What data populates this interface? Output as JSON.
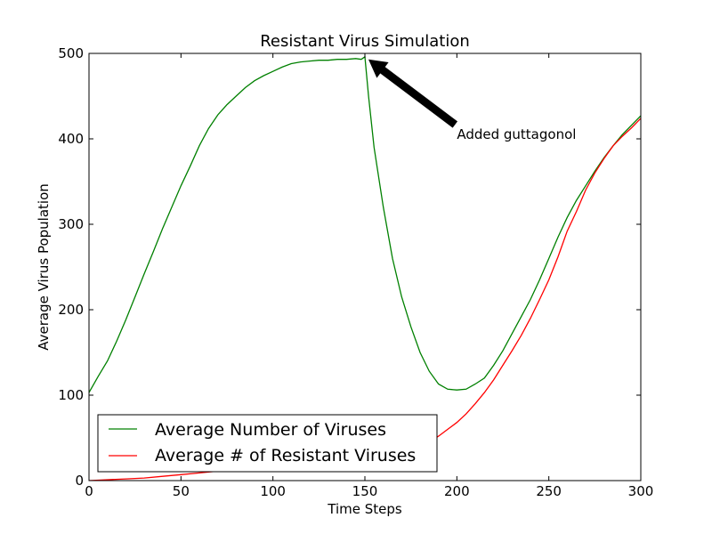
{
  "chart_data": {
    "type": "line",
    "title": "Resistant Virus Simulation",
    "xlabel": "Time Steps",
    "ylabel": "Average Virus Population",
    "xlim": [
      0,
      300
    ],
    "ylim": [
      0,
      500
    ],
    "xticks": [
      0,
      50,
      100,
      150,
      200,
      250,
      300
    ],
    "yticks": [
      0,
      100,
      200,
      300,
      400,
      500
    ],
    "grid": false,
    "legend_position": "lower-left",
    "annotation": {
      "text": "Added guttagonol",
      "xy": [
        150,
        495
      ],
      "xytext": [
        200,
        400
      ]
    },
    "series": [
      {
        "name": "Average Number of Viruses",
        "color": "#008000",
        "points": [
          [
            0,
            103
          ],
          [
            5,
            122
          ],
          [
            10,
            140
          ],
          [
            15,
            163
          ],
          [
            20,
            188
          ],
          [
            25,
            215
          ],
          [
            30,
            242
          ],
          [
            35,
            268
          ],
          [
            40,
            295
          ],
          [
            45,
            320
          ],
          [
            50,
            345
          ],
          [
            55,
            368
          ],
          [
            60,
            392
          ],
          [
            65,
            412
          ],
          [
            70,
            428
          ],
          [
            75,
            440
          ],
          [
            80,
            450
          ],
          [
            85,
            460
          ],
          [
            90,
            468
          ],
          [
            95,
            474
          ],
          [
            100,
            479
          ],
          [
            105,
            484
          ],
          [
            110,
            488
          ],
          [
            115,
            490
          ],
          [
            120,
            491
          ],
          [
            125,
            492
          ],
          [
            130,
            492
          ],
          [
            135,
            493
          ],
          [
            140,
            493
          ],
          [
            145,
            494
          ],
          [
            148,
            493
          ],
          [
            150,
            496
          ],
          [
            152,
            450
          ],
          [
            155,
            390
          ],
          [
            160,
            320
          ],
          [
            165,
            260
          ],
          [
            170,
            215
          ],
          [
            175,
            180
          ],
          [
            180,
            150
          ],
          [
            185,
            128
          ],
          [
            190,
            113
          ],
          [
            195,
            107
          ],
          [
            200,
            106
          ],
          [
            205,
            107
          ],
          [
            210,
            113
          ],
          [
            215,
            120
          ],
          [
            220,
            135
          ],
          [
            225,
            152
          ],
          [
            230,
            172
          ],
          [
            235,
            192
          ],
          [
            240,
            212
          ],
          [
            245,
            235
          ],
          [
            250,
            260
          ],
          [
            255,
            285
          ],
          [
            260,
            308
          ],
          [
            265,
            328
          ],
          [
            270,
            345
          ],
          [
            275,
            362
          ],
          [
            280,
            378
          ],
          [
            285,
            392
          ],
          [
            290,
            405
          ],
          [
            295,
            416
          ],
          [
            300,
            427
          ]
        ]
      },
      {
        "name": "Average # of Resistant Viruses",
        "color": "#ff0000",
        "points": [
          [
            0,
            0
          ],
          [
            10,
            1
          ],
          [
            20,
            2
          ],
          [
            30,
            3
          ],
          [
            40,
            5
          ],
          [
            50,
            7
          ],
          [
            60,
            9
          ],
          [
            70,
            11
          ],
          [
            80,
            13
          ],
          [
            90,
            16
          ],
          [
            100,
            19
          ],
          [
            110,
            21
          ],
          [
            120,
            23
          ],
          [
            130,
            25
          ],
          [
            140,
            27
          ],
          [
            150,
            29
          ],
          [
            160,
            31
          ],
          [
            170,
            34
          ],
          [
            180,
            40
          ],
          [
            185,
            45
          ],
          [
            190,
            52
          ],
          [
            195,
            60
          ],
          [
            200,
            68
          ],
          [
            205,
            78
          ],
          [
            210,
            90
          ],
          [
            215,
            103
          ],
          [
            220,
            118
          ],
          [
            225,
            135
          ],
          [
            230,
            152
          ],
          [
            235,
            170
          ],
          [
            240,
            190
          ],
          [
            245,
            212
          ],
          [
            250,
            235
          ],
          [
            255,
            262
          ],
          [
            260,
            292
          ],
          [
            265,
            315
          ],
          [
            270,
            340
          ],
          [
            275,
            360
          ],
          [
            280,
            377
          ],
          [
            285,
            392
          ],
          [
            290,
            403
          ],
          [
            295,
            413
          ],
          [
            300,
            424
          ]
        ]
      }
    ]
  }
}
